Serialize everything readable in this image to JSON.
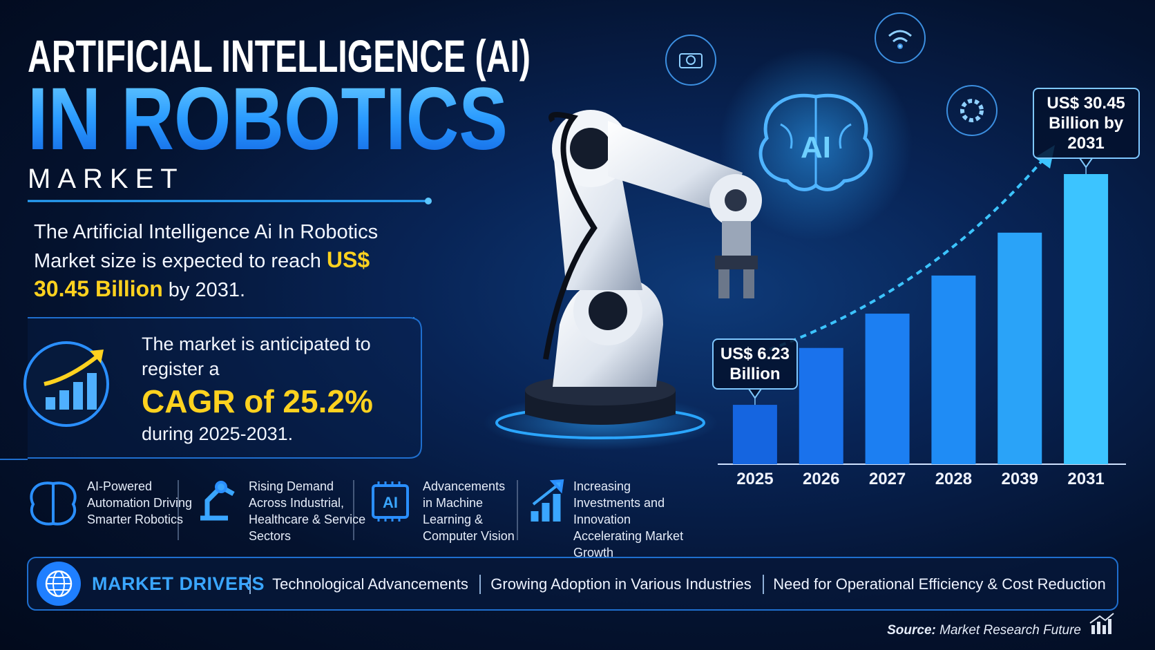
{
  "header": {
    "title_line1": "ARTIFICIAL INTELLIGENCE (AI)",
    "title_line2": "IN ROBOTICS",
    "title_line3": "MARKET"
  },
  "summary": {
    "text_before": "The Artificial Intelligence Ai In Robotics Market size is expected to reach",
    "highlight": "US$ 30.45 Billion",
    "text_after": "by 2031."
  },
  "cagr": {
    "text_before": "The market is anticipated to register a",
    "highlight": "CAGR of 25.2%",
    "text_after": "during 2025-2031."
  },
  "icons": {
    "brain_label": "AI",
    "chip_label": "AI"
  },
  "features": [
    "AI-Powered Automation Driving Smarter Robotics",
    "Rising Demand Across Industrial, Healthcare & Service Sectors",
    "Advancements in Machine Learning & Computer Vision",
    "Increasing Investments and Innovation Accelerating Market Growth"
  ],
  "drivers": {
    "label": "MARKET DRIVERS",
    "items": [
      "Technological Advancements",
      "Growing Adoption in Various Industries",
      "Need for Operational Efficiency & Cost Reduction"
    ]
  },
  "source": {
    "label": "Source:",
    "text": "Market Research Future"
  },
  "chart_data": {
    "type": "bar",
    "categories": [
      "2025",
      "2026",
      "2027",
      "2028",
      "2039",
      "2031"
    ],
    "values": [
      6.23,
      12.2,
      15.8,
      19.8,
      24.3,
      30.45
    ],
    "value_labels": [
      "US$ 6.23 Billion",
      null,
      null,
      null,
      null,
      "US$ 30.45 Billion by 2031"
    ],
    "colors": [
      "#1565e0",
      "#1a72ec",
      "#1c7ff2",
      "#1f8cf5",
      "#2aa3f8",
      "#3cc4ff"
    ]
  }
}
